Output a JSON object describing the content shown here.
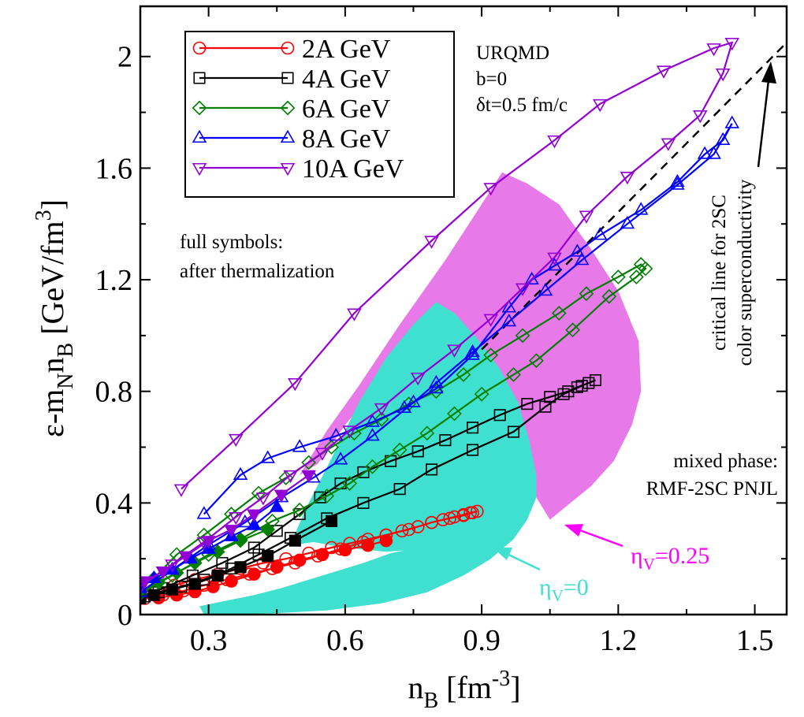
{
  "chart_data": {
    "type": "line",
    "xlabel_main": "n",
    "xlabel_sub": "B",
    "xlabel_rest": " [fm",
    "xlabel_sup": "-3",
    "xlabel_end": "]",
    "ylabel_main": "ε-m",
    "ylabel_sub1": "N",
    "ylabel_mid": "n",
    "ylabel_sub2": "B",
    "ylabel_rest": " [GeV/fm",
    "ylabel_sup": "3",
    "ylabel_end": "]",
    "xlim": [
      0.15,
      1.57
    ],
    "ylim": [
      0,
      2.18
    ],
    "xticks": [
      {
        "value": 0.3,
        "label": "0.3"
      },
      {
        "value": 0.6,
        "label": "0.6"
      },
      {
        "value": 0.9,
        "label": "0.9"
      },
      {
        "value": 1.2,
        "label": "1.2"
      },
      {
        "value": 1.5,
        "label": "1.5"
      }
    ],
    "yticks": [
      {
        "value": 0,
        "label": "0"
      },
      {
        "value": 0.4,
        "label": "0.4"
      },
      {
        "value": 0.8,
        "label": "0.8"
      },
      {
        "value": 1.2,
        "label": "1.2"
      },
      {
        "value": 1.6,
        "label": "1.6"
      },
      {
        "value": 2.0,
        "label": "2"
      }
    ],
    "legend_position": "top-left",
    "series": [
      {
        "name": "2A GeV",
        "color": "#ff0000",
        "marker": "circle",
        "open": [
          [
            0.15,
            0.065
          ],
          [
            0.185,
            0.085
          ],
          [
            0.225,
            0.105
          ],
          [
            0.27,
            0.125
          ],
          [
            0.32,
            0.145
          ],
          [
            0.37,
            0.165
          ],
          [
            0.42,
            0.185
          ],
          [
            0.47,
            0.2
          ],
          [
            0.52,
            0.22
          ],
          [
            0.57,
            0.24
          ],
          [
            0.61,
            0.255
          ],
          [
            0.65,
            0.27
          ],
          [
            0.69,
            0.285
          ],
          [
            0.725,
            0.3
          ],
          [
            0.76,
            0.315
          ],
          [
            0.79,
            0.33
          ],
          [
            0.815,
            0.34
          ],
          [
            0.84,
            0.35
          ],
          [
            0.86,
            0.358
          ],
          [
            0.875,
            0.365
          ],
          [
            0.89,
            0.37
          ],
          [
            0.88,
            0.365
          ],
          [
            0.86,
            0.355
          ],
          [
            0.83,
            0.345
          ],
          [
            0.79,
            0.33
          ],
          [
            0.74,
            0.305
          ],
          [
            0.69,
            0.285
          ],
          [
            0.64,
            0.26
          ],
          [
            0.59,
            0.235
          ],
          [
            0.54,
            0.21
          ],
          [
            0.49,
            0.185
          ],
          [
            0.44,
            0.165
          ],
          [
            0.39,
            0.145
          ],
          [
            0.34,
            0.125
          ],
          [
            0.29,
            0.105
          ],
          [
            0.245,
            0.085
          ],
          [
            0.2,
            0.07
          ],
          [
            0.16,
            0.058
          ]
        ],
        "full": [
          [
            0.15,
            0.058
          ],
          [
            0.19,
            0.06
          ],
          [
            0.23,
            0.07
          ],
          [
            0.27,
            0.082
          ],
          [
            0.31,
            0.1
          ],
          [
            0.35,
            0.12
          ],
          [
            0.4,
            0.145
          ],
          [
            0.45,
            0.17
          ],
          [
            0.5,
            0.195
          ],
          [
            0.55,
            0.215
          ],
          [
            0.6,
            0.232
          ],
          [
            0.65,
            0.248
          ],
          [
            0.69,
            0.265
          ]
        ]
      },
      {
        "name": "4A GeV",
        "color": "#000000",
        "marker": "square",
        "open": [
          [
            0.15,
            0.06
          ],
          [
            0.2,
            0.095
          ],
          [
            0.265,
            0.14
          ],
          [
            0.33,
            0.185
          ],
          [
            0.4,
            0.24
          ],
          [
            0.45,
            0.3
          ],
          [
            0.5,
            0.36
          ],
          [
            0.545,
            0.42
          ],
          [
            0.59,
            0.47
          ],
          [
            0.64,
            0.51
          ],
          [
            0.7,
            0.55
          ],
          [
            0.76,
            0.585
          ],
          [
            0.82,
            0.625
          ],
          [
            0.88,
            0.67
          ],
          [
            0.94,
            0.715
          ],
          [
            1.0,
            0.755
          ],
          [
            1.05,
            0.78
          ],
          [
            1.09,
            0.8
          ],
          [
            1.11,
            0.815
          ],
          [
            1.135,
            0.83
          ],
          [
            1.15,
            0.84
          ],
          [
            1.12,
            0.82
          ],
          [
            1.08,
            0.79
          ],
          [
            1.04,
            0.745
          ],
          [
            0.97,
            0.655
          ],
          [
            0.88,
            0.59
          ],
          [
            0.79,
            0.52
          ],
          [
            0.72,
            0.45
          ],
          [
            0.64,
            0.4
          ],
          [
            0.56,
            0.345
          ],
          [
            0.48,
            0.275
          ],
          [
            0.41,
            0.215
          ],
          [
            0.35,
            0.165
          ],
          [
            0.29,
            0.125
          ],
          [
            0.24,
            0.1
          ],
          [
            0.19,
            0.08
          ],
          [
            0.16,
            0.065
          ]
        ],
        "full": [
          [
            0.15,
            0.058
          ],
          [
            0.18,
            0.07
          ],
          [
            0.22,
            0.09
          ],
          [
            0.27,
            0.11
          ],
          [
            0.32,
            0.14
          ],
          [
            0.37,
            0.17
          ],
          [
            0.43,
            0.21
          ],
          [
            0.49,
            0.265
          ],
          [
            0.57,
            0.335
          ]
        ]
      },
      {
        "name": "6A GeV",
        "color": "#008000",
        "marker": "diamond",
        "open": [
          [
            0.15,
            0.075
          ],
          [
            0.22,
            0.14
          ],
          [
            0.3,
            0.215
          ],
          [
            0.37,
            0.27
          ],
          [
            0.44,
            0.335
          ],
          [
            0.5,
            0.375
          ],
          [
            0.56,
            0.425
          ],
          [
            0.61,
            0.47
          ],
          [
            0.66,
            0.53
          ],
          [
            0.72,
            0.59
          ],
          [
            0.78,
            0.65
          ],
          [
            0.84,
            0.72
          ],
          [
            0.9,
            0.79
          ],
          [
            0.97,
            0.86
          ],
          [
            1.02,
            0.91
          ],
          [
            1.1,
            1.02
          ],
          [
            1.18,
            1.14
          ],
          [
            1.24,
            1.21
          ],
          [
            1.26,
            1.24
          ],
          [
            1.25,
            1.255
          ],
          [
            1.2,
            1.21
          ],
          [
            1.13,
            1.15
          ],
          [
            1.07,
            1.08
          ],
          [
            0.99,
            1.0
          ],
          [
            0.92,
            0.93
          ],
          [
            0.86,
            0.86
          ],
          [
            0.8,
            0.8
          ],
          [
            0.74,
            0.755
          ],
          [
            0.68,
            0.7
          ],
          [
            0.62,
            0.65
          ],
          [
            0.57,
            0.6
          ],
          [
            0.52,
            0.545
          ],
          [
            0.47,
            0.49
          ],
          [
            0.41,
            0.435
          ],
          [
            0.35,
            0.36
          ],
          [
            0.29,
            0.285
          ],
          [
            0.23,
            0.215
          ],
          [
            0.18,
            0.13
          ],
          [
            0.15,
            0.095
          ]
        ],
        "full": [
          [
            0.15,
            0.085
          ],
          [
            0.19,
            0.115
          ],
          [
            0.23,
            0.15
          ],
          [
            0.27,
            0.185
          ],
          [
            0.32,
            0.225
          ],
          [
            0.37,
            0.265
          ],
          [
            0.43,
            0.305
          ]
        ]
      },
      {
        "name": "8A GeV",
        "color": "#0000ff",
        "marker": "triangle-up",
        "open": [
          [
            0.15,
            0.08
          ],
          [
            0.22,
            0.16
          ],
          [
            0.3,
            0.25
          ],
          [
            0.38,
            0.33
          ],
          [
            0.46,
            0.42
          ],
          [
            0.53,
            0.49
          ],
          [
            0.59,
            0.555
          ],
          [
            0.66,
            0.64
          ],
          [
            0.75,
            0.76
          ],
          [
            0.8,
            0.83
          ],
          [
            0.88,
            0.94
          ],
          [
            0.96,
            1.05
          ],
          [
            1.04,
            1.16
          ],
          [
            1.12,
            1.27
          ],
          [
            1.22,
            1.4
          ],
          [
            1.33,
            1.54
          ],
          [
            1.41,
            1.65
          ],
          [
            1.45,
            1.76
          ],
          [
            1.43,
            1.7
          ],
          [
            1.39,
            1.65
          ],
          [
            1.33,
            1.55
          ],
          [
            1.25,
            1.45
          ],
          [
            1.16,
            1.36
          ],
          [
            1.11,
            1.3
          ],
          [
            1.06,
            1.25
          ],
          [
            1.01,
            1.2
          ],
          [
            0.96,
            1.1
          ],
          [
            0.88,
            0.93
          ],
          [
            0.8,
            0.81
          ],
          [
            0.73,
            0.74
          ],
          [
            0.66,
            0.69
          ],
          [
            0.58,
            0.64
          ],
          [
            0.5,
            0.6
          ],
          [
            0.43,
            0.56
          ],
          [
            0.37,
            0.5
          ],
          [
            0.29,
            0.36
          ]
        ],
        "full": [
          [
            0.15,
            0.095
          ],
          [
            0.18,
            0.13
          ],
          [
            0.22,
            0.16
          ],
          [
            0.26,
            0.2
          ],
          [
            0.3,
            0.235
          ],
          [
            0.35,
            0.28
          ],
          [
            0.4,
            0.32
          ],
          [
            0.45,
            0.385
          ]
        ]
      },
      {
        "name": "10A GeV",
        "color": "#9400d3",
        "marker": "triangle-down",
        "open": [
          [
            0.15,
            0.1
          ],
          [
            0.22,
            0.18
          ],
          [
            0.29,
            0.26
          ],
          [
            0.36,
            0.35
          ],
          [
            0.42,
            0.42
          ],
          [
            0.48,
            0.5
          ],
          [
            0.55,
            0.58
          ],
          [
            0.61,
            0.66
          ],
          [
            0.68,
            0.74
          ],
          [
            0.76,
            0.85
          ],
          [
            0.84,
            0.95
          ],
          [
            0.92,
            1.06
          ],
          [
            0.99,
            1.17
          ],
          [
            1.06,
            1.28
          ],
          [
            1.13,
            1.43
          ],
          [
            1.22,
            1.57
          ],
          [
            1.31,
            1.69
          ],
          [
            1.38,
            1.79
          ],
          [
            1.43,
            1.94
          ],
          [
            1.45,
            2.05
          ],
          [
            1.41,
            2.03
          ],
          [
            1.3,
            1.95
          ],
          [
            1.16,
            1.83
          ],
          [
            1.06,
            1.7
          ],
          [
            0.92,
            1.53
          ],
          [
            0.79,
            1.34
          ],
          [
            0.62,
            1.08
          ],
          [
            0.49,
            0.83
          ],
          [
            0.36,
            0.63
          ],
          [
            0.24,
            0.45
          ]
        ],
        "full": [
          [
            0.16,
            0.12
          ],
          [
            0.2,
            0.155
          ],
          [
            0.25,
            0.21
          ],
          [
            0.3,
            0.265
          ],
          [
            0.35,
            0.305
          ],
          [
            0.4,
            0.36
          ],
          [
            0.46,
            0.43
          ],
          [
            0.52,
            0.5
          ]
        ]
      }
    ],
    "regions": [
      {
        "name": "mixed phase: RMF-2SC PNJL",
        "label": "η",
        "sublabel": "V",
        "value_text": "=0.25",
        "color": "#e879e8"
      },
      {
        "name": "ηV=0",
        "label": "η",
        "sublabel": "V",
        "value_text": "=0",
        "color": "#40e0d0"
      }
    ],
    "critical_line": {
      "x": [
        0.9,
        1.57
      ],
      "y": [
        0.95,
        2.05
      ],
      "color": "#000000",
      "style": "dashed"
    },
    "annotations": {
      "urqmd_lines": [
        "URQMD",
        "b=0",
        "δt=0.5 fm/c"
      ],
      "full_symbols_lines": [
        "full symbols:",
        "after thermalization"
      ],
      "mixed_phase_lines": [
        "mixed phase:",
        "RMF-2SC PNJL"
      ],
      "critical_lines": [
        "critical line for 2SC",
        "color superconductivity"
      ]
    }
  }
}
